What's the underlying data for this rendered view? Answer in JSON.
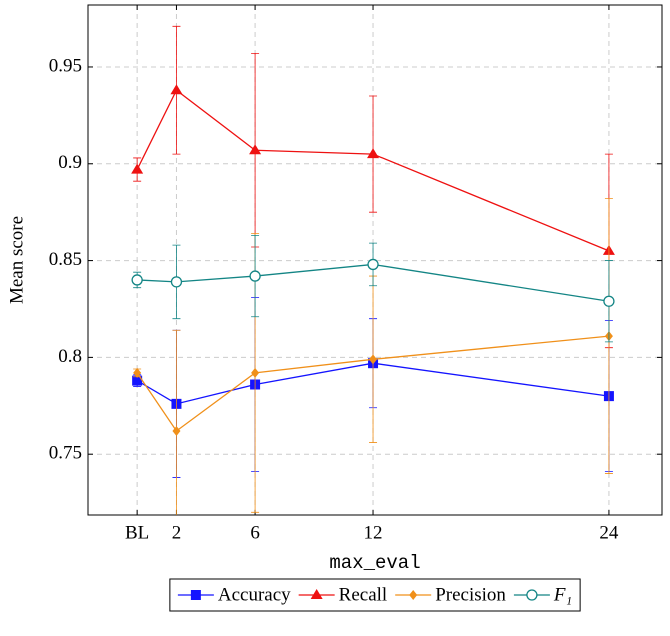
{
  "chart_data": {
    "type": "line",
    "x_label": "max_eval",
    "y_label": "Mean score",
    "xlim": [
      -2.5,
      26.7
    ],
    "ylim": [
      0.7186,
      0.982
    ],
    "xticks": [
      {
        "value": 0,
        "label": "BL"
      },
      2,
      6,
      12,
      24
    ],
    "yticks": [
      0.75,
      0.8,
      0.85,
      0.9,
      0.95
    ],
    "grid": true,
    "legend": "below",
    "x": [
      0,
      2,
      6,
      12,
      24
    ],
    "series": [
      {
        "name": "Accuracy",
        "color": "#1414ff",
        "marker": "square",
        "values": [
          0.788,
          0.776,
          0.786,
          0.797,
          0.78
        ],
        "errors": [
          0.003,
          0.038,
          0.045,
          0.023,
          0.039
        ]
      },
      {
        "name": "Recall",
        "color": "#ee1111",
        "marker": "triangle",
        "values": [
          0.897,
          0.938,
          0.907,
          0.905,
          0.855
        ],
        "errors": [
          0.006,
          0.033,
          0.05,
          0.03,
          0.05
        ]
      },
      {
        "name": "Precision",
        "color": "#f0901a",
        "marker": "diamond",
        "values": [
          0.792,
          0.762,
          0.792,
          0.799,
          0.811
        ],
        "errors": [
          0.002,
          0.052,
          0.072,
          0.043,
          0.071
        ]
      },
      {
        "name": "F₁",
        "color": "#138585",
        "marker": "circle",
        "values": [
          0.84,
          0.839,
          0.842,
          0.848,
          0.829
        ],
        "errors": [
          0.004,
          0.019,
          0.021,
          0.011,
          0.021
        ]
      }
    ]
  }
}
